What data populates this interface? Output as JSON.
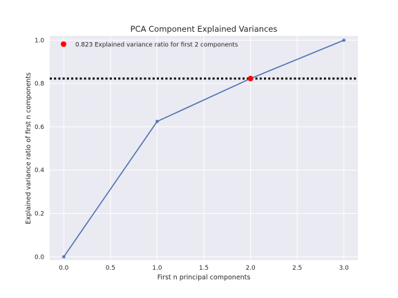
{
  "chart_data": {
    "type": "line",
    "title": "PCA Component Explained Variances",
    "xlabel": "First n principal components",
    "ylabel": "Explained variance ratio of first n components",
    "xlim": [
      -0.15,
      3.15
    ],
    "ylim": [
      -0.015,
      1.02
    ],
    "x_ticks": [
      0.0,
      0.5,
      1.0,
      1.5,
      2.0,
      2.5,
      3.0
    ],
    "x_tick_labels": [
      "0.0",
      "0.5",
      "1.0",
      "1.5",
      "2.0",
      "2.5",
      "3.0"
    ],
    "y_ticks": [
      0.0,
      0.2,
      0.4,
      0.6,
      0.8,
      1.0
    ],
    "y_tick_labels": [
      "0.0",
      "0.2",
      "0.4",
      "0.6",
      "0.8",
      "1.0"
    ],
    "grid": true,
    "series": [
      {
        "x": [
          0,
          1,
          2,
          3
        ],
        "y": [
          0.0,
          0.625,
          0.823,
          1.0
        ],
        "color": "#4c72b0",
        "marker": "star"
      }
    ],
    "highlight_point": {
      "x": 2,
      "y": 0.823,
      "color": "#ff0000",
      "label": "0.823 Explained variance ratio for first 2 components"
    },
    "reference_line": {
      "y": 0.823,
      "color": "#000000",
      "style": "dotted"
    },
    "legend_placement": "upper-left",
    "background_color": "#eaeaf2"
  }
}
